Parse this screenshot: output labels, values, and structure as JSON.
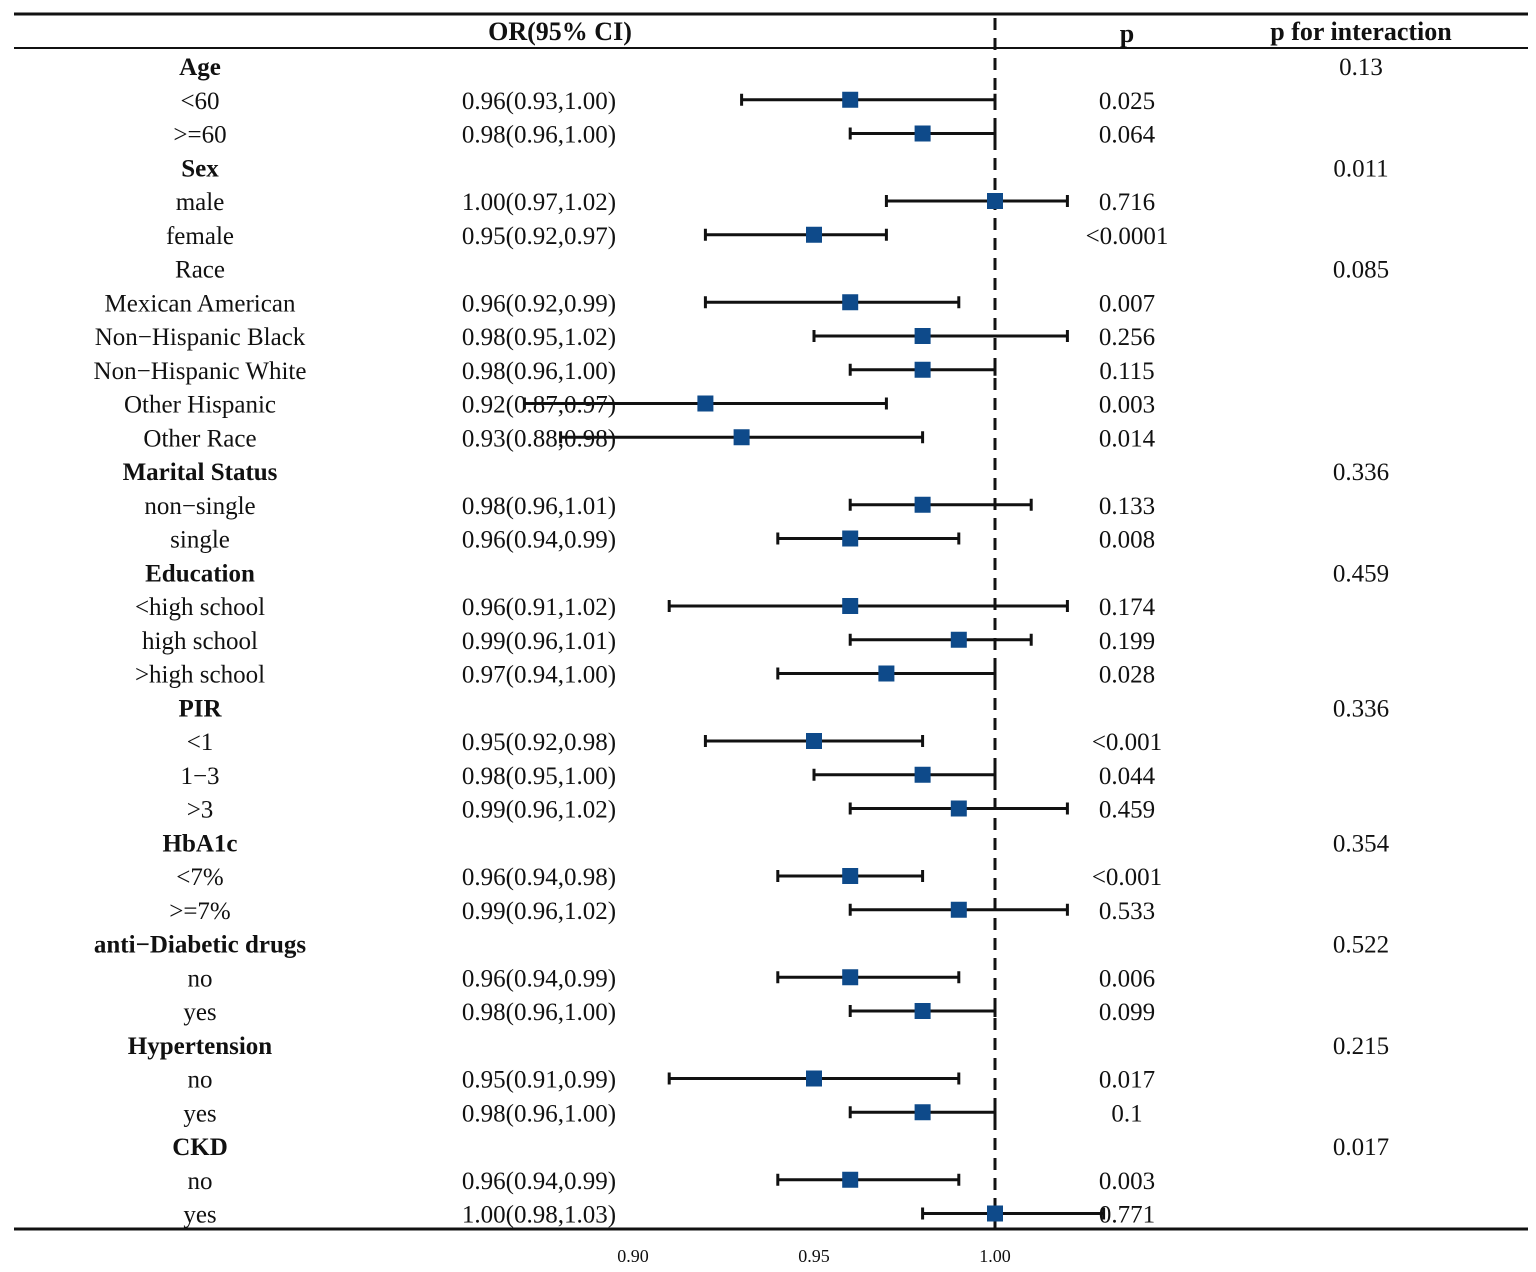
{
  "chart_data": {
    "type": "forest",
    "headers": {
      "or": "OR(95% CI)",
      "p": "p",
      "p_interaction": "p for interaction"
    },
    "reference_value": 1.0,
    "xlim": [
      0.88,
      1.03
    ],
    "x_ticks": [
      0.9,
      0.95,
      1.0
    ],
    "x_tick_labels": [
      "0.90",
      "0.95",
      "1.00"
    ],
    "marker_color": "#0e4a8a",
    "rows": [
      {
        "label": "Age",
        "bold": true,
        "p_interaction": "0.13"
      },
      {
        "label": "<60",
        "or_text": "0.96(0.93,1.00)",
        "or": 0.96,
        "lo": 0.93,
        "hi": 1.0,
        "p": "0.025"
      },
      {
        "label": ">=60",
        "or_text": "0.98(0.96,1.00)",
        "or": 0.98,
        "lo": 0.96,
        "hi": 1.0,
        "p": "0.064"
      },
      {
        "label": "Sex",
        "bold": true,
        "p_interaction": "0.011"
      },
      {
        "label": "male",
        "or_text": "1.00(0.97,1.02)",
        "or": 1.0,
        "lo": 0.97,
        "hi": 1.02,
        "p": "0.716"
      },
      {
        "label": "female",
        "or_text": "0.95(0.92,0.97)",
        "or": 0.95,
        "lo": 0.92,
        "hi": 0.97,
        "p": "<0.0001"
      },
      {
        "label": "Race",
        "bold": false,
        "p_interaction": "0.085"
      },
      {
        "label": "Mexican American",
        "or_text": "0.96(0.92,0.99)",
        "or": 0.96,
        "lo": 0.92,
        "hi": 0.99,
        "p": "0.007"
      },
      {
        "label": "Non−Hispanic Black",
        "or_text": "0.98(0.95,1.02)",
        "or": 0.98,
        "lo": 0.95,
        "hi": 1.02,
        "p": "0.256"
      },
      {
        "label": "Non−Hispanic White",
        "or_text": "0.98(0.96,1.00)",
        "or": 0.98,
        "lo": 0.96,
        "hi": 1.0,
        "p": "0.115"
      },
      {
        "label": "Other Hispanic",
        "or_text": "0.92(0.87,0.97)",
        "or": 0.92,
        "lo": 0.87,
        "hi": 0.97,
        "p": "0.003"
      },
      {
        "label": "Other Race",
        "or_text": "0.93(0.88,0.98)",
        "or": 0.93,
        "lo": 0.88,
        "hi": 0.98,
        "p": "0.014"
      },
      {
        "label": "Marital Status",
        "bold": true,
        "p_interaction": "0.336"
      },
      {
        "label": "non−single",
        "or_text": "0.98(0.96,1.01)",
        "or": 0.98,
        "lo": 0.96,
        "hi": 1.01,
        "p": "0.133"
      },
      {
        "label": "single",
        "or_text": "0.96(0.94,0.99)",
        "or": 0.96,
        "lo": 0.94,
        "hi": 0.99,
        "p": "0.008"
      },
      {
        "label": "Education",
        "bold": true,
        "p_interaction": "0.459"
      },
      {
        "label": "<high school",
        "or_text": "0.96(0.91,1.02)",
        "or": 0.96,
        "lo": 0.91,
        "hi": 1.02,
        "p": "0.174"
      },
      {
        "label": "high school",
        "or_text": "0.99(0.96,1.01)",
        "or": 0.99,
        "lo": 0.96,
        "hi": 1.01,
        "p": "0.199"
      },
      {
        "label": ">high school",
        "or_text": "0.97(0.94,1.00)",
        "or": 0.97,
        "lo": 0.94,
        "hi": 1.0,
        "p": "0.028"
      },
      {
        "label": "PIR",
        "bold": true,
        "p_interaction": "0.336"
      },
      {
        "label": "<1",
        "or_text": "0.95(0.92,0.98)",
        "or": 0.95,
        "lo": 0.92,
        "hi": 0.98,
        "p": "<0.001"
      },
      {
        "label": "1−3",
        "or_text": "0.98(0.95,1.00)",
        "or": 0.98,
        "lo": 0.95,
        "hi": 1.0,
        "p": "0.044"
      },
      {
        "label": ">3",
        "or_text": "0.99(0.96,1.02)",
        "or": 0.99,
        "lo": 0.96,
        "hi": 1.02,
        "p": "0.459"
      },
      {
        "label": "HbA1c",
        "bold": true,
        "p_interaction": "0.354"
      },
      {
        "label": "<7%",
        "or_text": "0.96(0.94,0.98)",
        "or": 0.96,
        "lo": 0.94,
        "hi": 0.98,
        "p": "<0.001"
      },
      {
        "label": ">=7%",
        "or_text": "0.99(0.96,1.02)",
        "or": 0.99,
        "lo": 0.96,
        "hi": 1.02,
        "p": "0.533"
      },
      {
        "label": "anti−Diabetic drugs",
        "bold": true,
        "p_interaction": "0.522"
      },
      {
        "label": "no",
        "or_text": "0.96(0.94,0.99)",
        "or": 0.96,
        "lo": 0.94,
        "hi": 0.99,
        "p": "0.006"
      },
      {
        "label": "yes",
        "or_text": "0.98(0.96,1.00)",
        "or": 0.98,
        "lo": 0.96,
        "hi": 1.0,
        "p": "0.099"
      },
      {
        "label": "Hypertension",
        "bold": true,
        "p_interaction": "0.215"
      },
      {
        "label": "no",
        "or_text": "0.95(0.91,0.99)",
        "or": 0.95,
        "lo": 0.91,
        "hi": 0.99,
        "p": "0.017"
      },
      {
        "label": "yes",
        "or_text": "0.98(0.96,1.00)",
        "or": 0.98,
        "lo": 0.96,
        "hi": 1.0,
        "p": "0.1"
      },
      {
        "label": "CKD",
        "bold": true,
        "p_interaction": "0.017"
      },
      {
        "label": "no",
        "or_text": "0.96(0.94,0.99)",
        "or": 0.96,
        "lo": 0.94,
        "hi": 0.99,
        "p": "0.003"
      },
      {
        "label": "yes",
        "or_text": "1.00(0.98,1.03)",
        "or": 1.0,
        "lo": 0.98,
        "hi": 1.03,
        "p": "0.771"
      }
    ]
  }
}
